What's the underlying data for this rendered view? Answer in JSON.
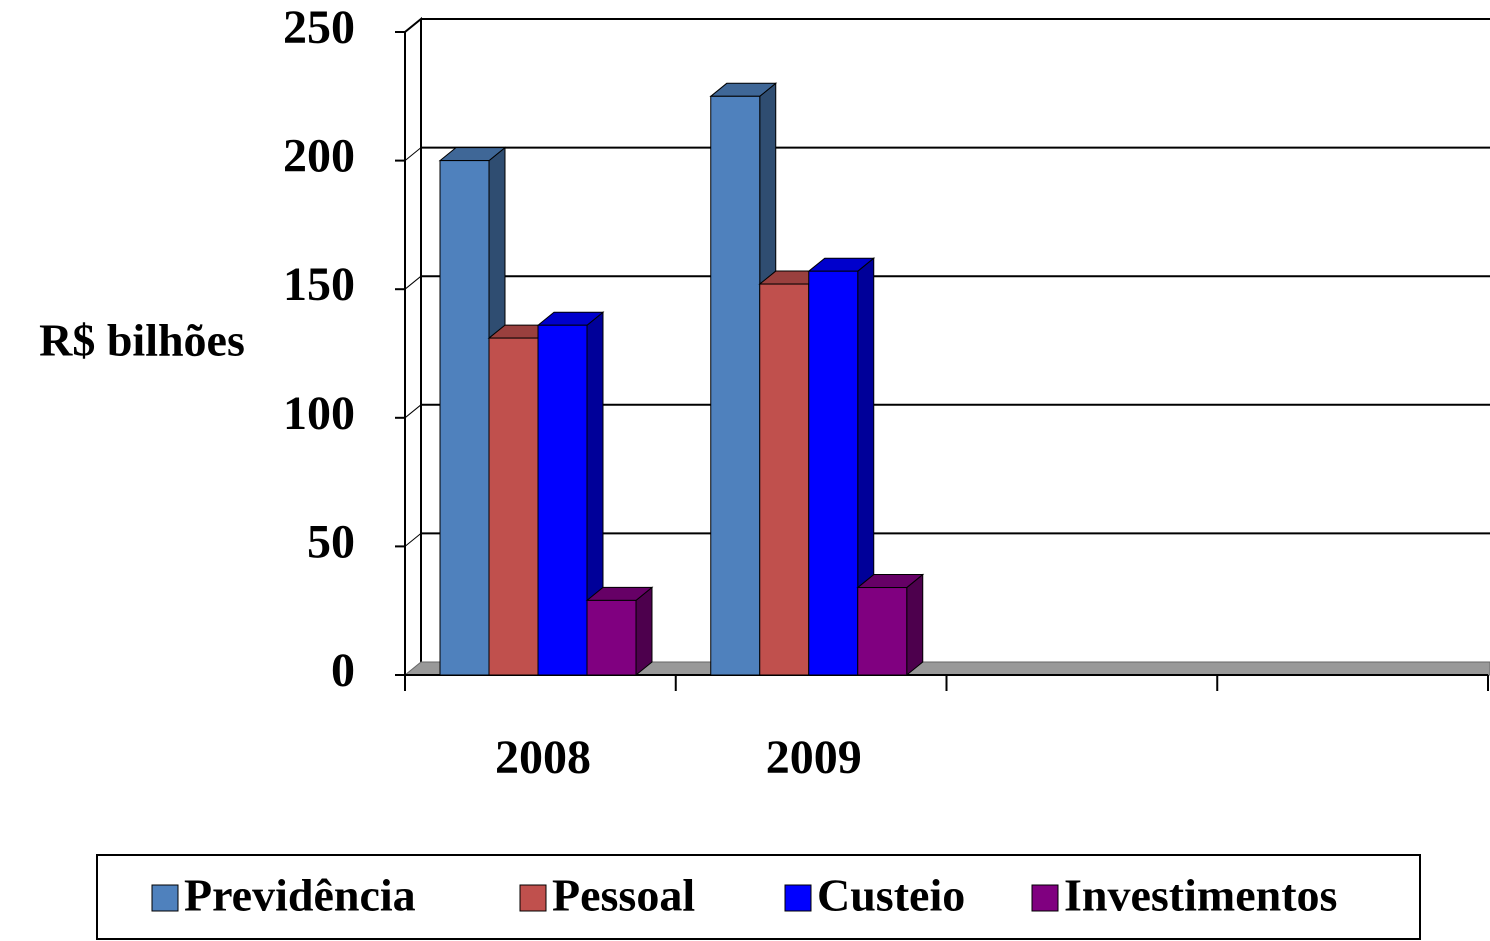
{
  "chart_data": {
    "type": "bar3d",
    "y_label": "R$ bilhões",
    "categories": [
      "2008",
      "2009",
      null,
      null
    ],
    "series": [
      {
        "name": "Previdência",
        "color": "#4f81bd",
        "values": [
          200,
          225,
          null,
          null
        ]
      },
      {
        "name": "Pessoal",
        "color": "#c0504d",
        "values": [
          131,
          152,
          null,
          null
        ]
      },
      {
        "name": "Custeio",
        "color": "#0000ff",
        "values": [
          136,
          157,
          null,
          null
        ]
      },
      {
        "name": "Investimentos",
        "color": "#800080",
        "values": [
          29,
          34,
          null,
          null
        ]
      }
    ],
    "ylim": [
      0,
      250
    ],
    "yticks": [
      0,
      50,
      100,
      150,
      200,
      250
    ],
    "grid": true,
    "legend": "bottom"
  }
}
